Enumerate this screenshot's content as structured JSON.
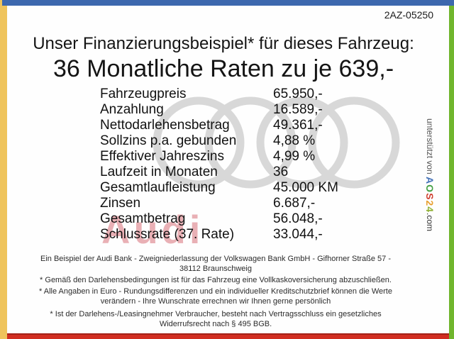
{
  "doc_id": "2AZ-05250",
  "header": {
    "title_line1": "Unser Finanzierungsbeispiel* für dieses Fahrzeug:",
    "title_line2": "36 Monatliche Raten zu je 639,-"
  },
  "finance": {
    "rows": [
      {
        "label": "Fahrzeugpreis",
        "value": "65.950,-"
      },
      {
        "label": "Anzahlung",
        "value": "16.589,-"
      },
      {
        "label": "Nettodarlehensbetrag",
        "value": "49.361,-"
      },
      {
        "label": "Sollzins p.a. gebunden",
        "value": "4,88 %"
      },
      {
        "label": "Effektiver Jahreszins",
        "value": "4,99 %"
      },
      {
        "label": "Laufzeit in Monaten",
        "value": "36"
      },
      {
        "label": "Gesamtlaufleistung",
        "value": "45.000 KM"
      },
      {
        "label": "Zinsen",
        "value": "6.687,-"
      },
      {
        "label": "Gesamtbetrag",
        "value": "56.048,-"
      },
      {
        "label": "Schlussrate (37. Rate)",
        "value": "33.044,-"
      }
    ]
  },
  "watermark": {
    "brand_text": "Audi",
    "rings_icon": "audi-rings-icon",
    "rings_color": "#d8d8d8",
    "wordmark_color": "#e9b0b5"
  },
  "supporter": {
    "prefix": "unterstützt von ",
    "brand_letters": [
      {
        "ch": "A",
        "color": "#4472b8"
      },
      {
        "ch": "O",
        "color": "#44a044"
      },
      {
        "ch": "S",
        "color": "#d04030"
      },
      {
        "ch": "2",
        "color": "#e8a030"
      },
      {
        "ch": "4",
        "color": "#8fb032"
      }
    ],
    "suffix": ".com"
  },
  "footer": {
    "lines": [
      "Ein Beispiel der Audi Bank -  Zweigniederlassung der Volkswagen Bank GmbH - Gifhorner Straße 57 -",
      "38112 Braunschweig",
      "* Gemäß den Darlehensbedingungen ist für das Fahrzeug eine Vollkaskoversicherung abzuschließen.",
      "* Alle Angaben in Euro - Rundungsdifferenzen und ein individueller Kreditschutzbrief können die Werte",
      "verändern - Ihre Wunschrate errechnen wir Ihnen gerne persönlich",
      "* Ist der Darlehens-/Leasingnehmer Verbraucher, besteht nach Vertragsschluss ein gesetzliches",
      "Widerrufsrecht nach § 495 BGB."
    ]
  },
  "frame_colors": {
    "top": "#3d68ae",
    "left": "#efc45c",
    "right": "#70b62d",
    "bottom": "#d12e21"
  }
}
